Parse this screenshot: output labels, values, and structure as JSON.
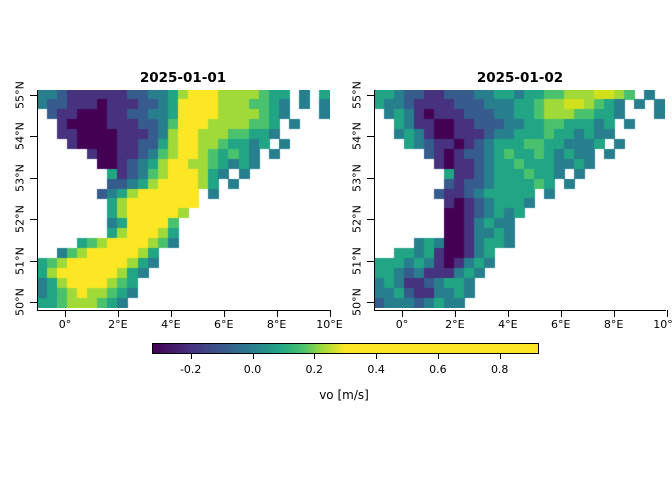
{
  "chart_data": {
    "type": "heatmap",
    "variable": "vo",
    "unit": "m/s",
    "description": "Two-panel raster map of northward sea water velocity (vo) over the southern North Sea, viridis colormap, white cells = land / no data",
    "x_axis": {
      "tick_labels": [
        "0°",
        "2°E",
        "4°E",
        "6°E",
        "8°E",
        "10°E"
      ],
      "tick_lons": [
        0,
        2,
        4,
        6,
        8,
        10
      ],
      "lon_range": [
        -1.1,
        10.2
      ]
    },
    "y_axis": {
      "tick_labels": [
        "55°N",
        "54°N",
        "53°N",
        "52°N",
        "51°N",
        "50°N"
      ],
      "tick_lats": [
        55,
        54,
        53,
        52,
        51,
        50
      ],
      "lat_range": [
        50,
        55.3
      ]
    },
    "palette": {
      "a": {
        "color": "#440154",
        "vo": -0.3
      },
      "b": {
        "color": "#46327e",
        "vo": -0.22
      },
      "c": {
        "color": "#365c8d",
        "vo": -0.14
      },
      "d": {
        "color": "#277f8e",
        "vo": -0.07
      },
      "e": {
        "color": "#21a585",
        "vo": 0.01
      },
      "f": {
        "color": "#4ac16d",
        "vo": 0.08
      },
      "g": {
        "color": "#a0da39",
        "vo": 0.16
      },
      "h": {
        "color": "#d0e11c",
        "vo": 0.22
      },
      "y": {
        "color": "#fde725",
        "vo": 0.5
      },
      ".": {
        "color": null,
        "vo": null
      }
    },
    "grid_cols": 29,
    "grid_rows": 22,
    "panels": [
      {
        "title": "2025-01-01",
        "grid": [
          "ddcbbbbbbccddegyyyggggfee.d.e",
          "dccbbbabbbccdeyyyygggffed.d.d",
          ".cbbaaabbccddeyyyyggggfed...d",
          "..baaaabbbccdfyyyggggffe.d...",
          "..bbaaaabbbcdgyygggffeed.....",
          "...baaaabbccegyyggfeede.d....",
          ".....baabbcdfgyygfefed.d.....",
          "......aabcdegyyggfeded.......",
          ".......ebcdfgyyyged.d........",
          ".......ccdegyyyyge.d.........",
          "......cdegyyyyyy.d...........",
          ".......egyyyyyyy.............",
          ".......egyyyyyg..............",
          ".......deyyyyf...............",
          ".......egyyyge...............",
          "....efgyyyygfd...............",
          "..dfgyyyyyge.................",
          "efgyyyyyyged.................",
          "egyyyyyyged..................",
          "degyyyygfe...................",
          "defgyggfed...................",
          "eefgggfed...................."
        ]
      },
      {
        "title": "2025-01-02",
        "grid": [
          "eedccbbcccddeedeeffggghhgf.d.",
          "eddcbbbbcccdddeefgghhgfed.d.d",
          ".dedbabbbcccddeefgggffeed...d",
          "..edbbaabbcccddeeffeeede.d...",
          "..dedbaabbbcddeeefeededd.....",
          "...edcbbabcdeeeffeeddde.d....",
          ".....cbabccdefeefededd.d.....",
          "......babbcdeefeeedded.......",
          ".......ebbcdeeefeed.d........",
          ".......cbccdeeeefe.d.........",
          "......cbbcdeeeee.d...........",
          ".......babcdeeed.............",
          ".......aabcdede..............",
          ".......aabdedd...............",
          ".......aabdded...............",
          "....dedaabdeed...............",
          "..eedebaabde.................",
          "eeededbabded.................",
          "eedcdbbbded..................",
          "dedbbcdeed...................",
          "ddecbbdded...................",
          "cdddcdedd...................."
        ]
      }
    ],
    "colorbar": {
      "label": "vo [m/s]",
      "tick_labels": [
        "-0.2",
        "0.0",
        "0.2",
        "0.4",
        "0.6",
        "0.8"
      ],
      "tick_values": [
        -0.2,
        0.0,
        0.2,
        0.4,
        0.6,
        0.8
      ],
      "value_range": [
        -0.33,
        0.92
      ],
      "gradient_stops": [
        [
          0.0,
          "#440154"
        ],
        [
          0.1,
          "#46327e"
        ],
        [
          0.19,
          "#365c8d"
        ],
        [
          0.26,
          "#277f8e"
        ],
        [
          0.33,
          "#21a585"
        ],
        [
          0.39,
          "#4ac16d"
        ],
        [
          0.44,
          "#a0da39"
        ],
        [
          0.5,
          "#fde725"
        ],
        [
          1.0,
          "#fde725"
        ]
      ]
    }
  }
}
